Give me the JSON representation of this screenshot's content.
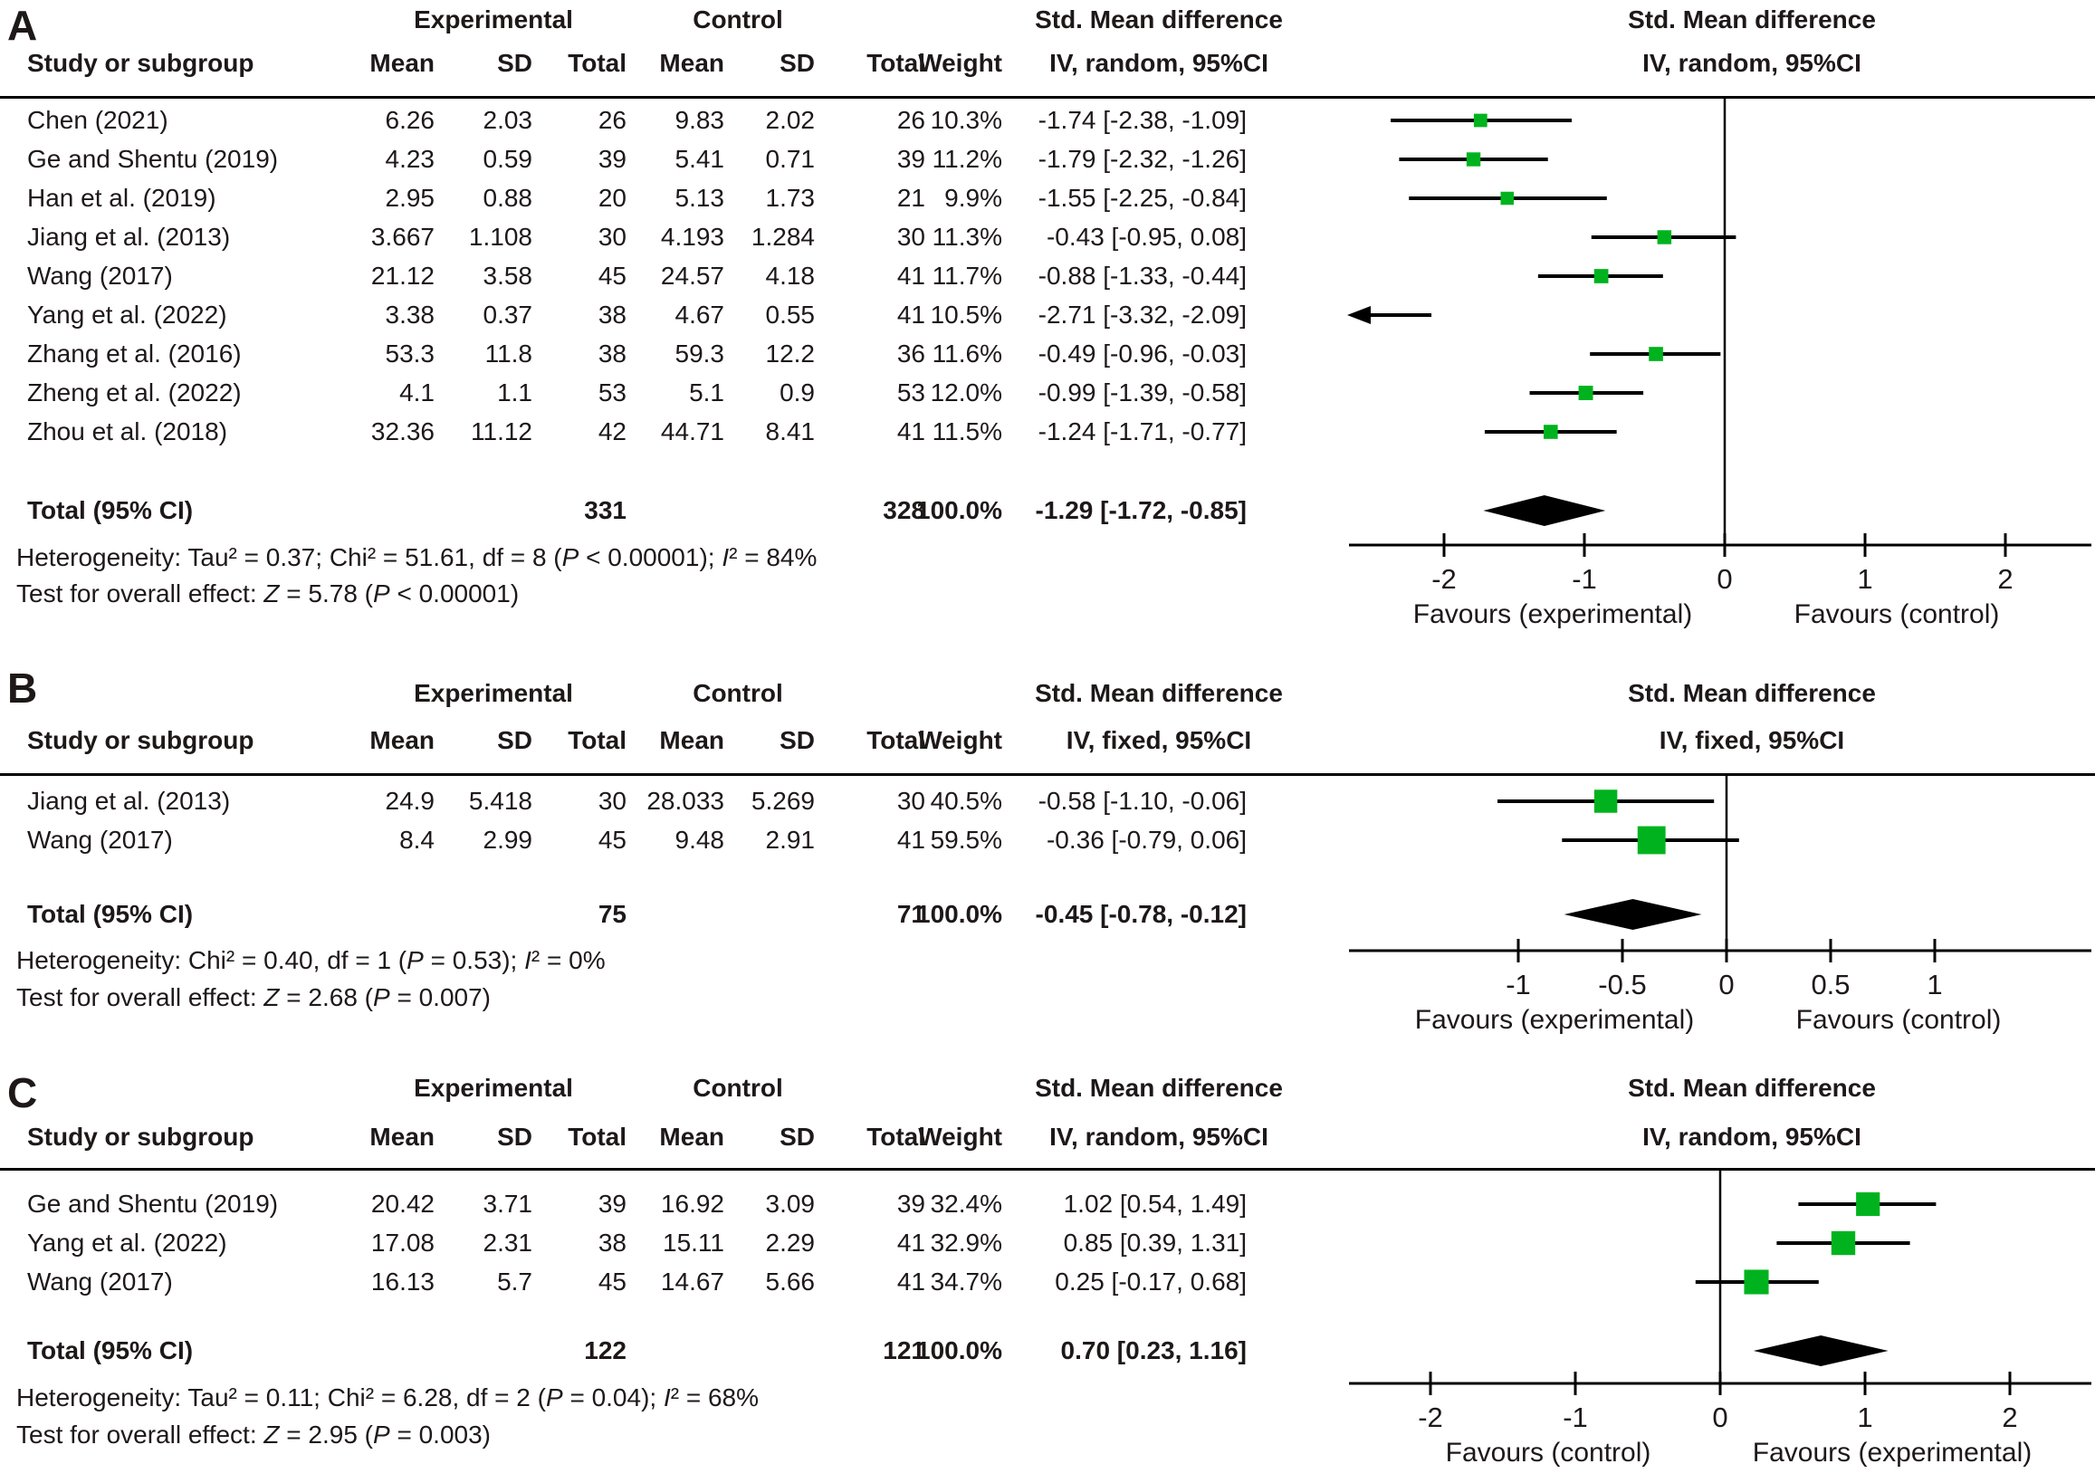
{
  "chart_data": {
    "type": "scatter",
    "subtype": "forest-plot-meta-analysis",
    "marker_color": "#00b31e",
    "line_color": "#000000",
    "panels": [
      {
        "label": "A",
        "headers": {
          "study": "Study or subgroup",
          "group1": "Experimental",
          "group2": "Control",
          "mean": "Mean",
          "sd": "SD",
          "total": "Total",
          "weight": "Weight",
          "effect_title": "Std. Mean difference",
          "effect_method": "IV, random, 95%CI",
          "plot_title": "Std. Mean difference",
          "plot_method": "IV, random, 95%CI"
        },
        "studies": [
          {
            "name": "Chen (2021)",
            "exp_mean": "6.26",
            "exp_sd": "2.03",
            "exp_total": "26",
            "ctrl_mean": "9.83",
            "ctrl_sd": "2.02",
            "ctrl_total": "26",
            "weight": "10.3%",
            "weight_pct": 10.3,
            "smd": "-1.74 [-2.38, -1.09]",
            "est": -1.74,
            "lo": -2.38,
            "hi": -1.09
          },
          {
            "name": "Ge and Shentu (2019)",
            "exp_mean": "4.23",
            "exp_sd": "0.59",
            "exp_total": "39",
            "ctrl_mean": "5.41",
            "ctrl_sd": "0.71",
            "ctrl_total": "39",
            "weight": "11.2%",
            "weight_pct": 11.2,
            "smd": "-1.79 [-2.32, -1.26]",
            "est": -1.79,
            "lo": -2.32,
            "hi": -1.26
          },
          {
            "name": "Han et al. (2019)",
            "exp_mean": "2.95",
            "exp_sd": "0.88",
            "exp_total": "20",
            "ctrl_mean": "5.13",
            "ctrl_sd": "1.73",
            "ctrl_total": "21",
            "weight": "9.9%",
            "weight_pct": 9.9,
            "smd": "-1.55 [-2.25, -0.84]",
            "est": -1.55,
            "lo": -2.25,
            "hi": -0.84
          },
          {
            "name": "Jiang et al. (2013)",
            "exp_mean": "3.667",
            "exp_sd": "1.108",
            "exp_total": "30",
            "ctrl_mean": "4.193",
            "ctrl_sd": "1.284",
            "ctrl_total": "30",
            "weight": "11.3%",
            "weight_pct": 11.3,
            "smd": "-0.43 [-0.95, 0.08]",
            "est": -0.43,
            "lo": -0.95,
            "hi": 0.08
          },
          {
            "name": "Wang (2017)",
            "exp_mean": "21.12",
            "exp_sd": "3.58",
            "exp_total": "45",
            "ctrl_mean": "24.57",
            "ctrl_sd": "4.18",
            "ctrl_total": "41",
            "weight": "11.7%",
            "weight_pct": 11.7,
            "smd": "-0.88 [-1.33, -0.44]",
            "est": -0.88,
            "lo": -1.33,
            "hi": -0.44
          },
          {
            "name": "Yang et al. (2022)",
            "exp_mean": "3.38",
            "exp_sd": "0.37",
            "exp_total": "38",
            "ctrl_mean": "4.67",
            "ctrl_sd": "0.55",
            "ctrl_total": "41",
            "weight": "10.5%",
            "weight_pct": 10.5,
            "smd": "-2.71 [-3.32, -2.09]",
            "est": -2.71,
            "lo": -3.32,
            "hi": -2.09
          },
          {
            "name": "Zhang et al. (2016)",
            "exp_mean": "53.3",
            "exp_sd": "11.8",
            "exp_total": "38",
            "ctrl_mean": "59.3",
            "ctrl_sd": "12.2",
            "ctrl_total": "36",
            "weight": "11.6%",
            "weight_pct": 11.6,
            "smd": "-0.49 [-0.96, -0.03]",
            "est": -0.49,
            "lo": -0.96,
            "hi": -0.03
          },
          {
            "name": "Zheng et al. (2022)",
            "exp_mean": "4.1",
            "exp_sd": "1.1",
            "exp_total": "53",
            "ctrl_mean": "5.1",
            "ctrl_sd": "0.9",
            "ctrl_total": "53",
            "weight": "12.0%",
            "weight_pct": 12.0,
            "smd": "-0.99 [-1.39, -0.58]",
            "est": -0.99,
            "lo": -1.39,
            "hi": -0.58
          },
          {
            "name": "Zhou et al. (2018)",
            "exp_mean": "32.36",
            "exp_sd": "11.12",
            "exp_total": "42",
            "ctrl_mean": "44.71",
            "ctrl_sd": "8.41",
            "ctrl_total": "41",
            "weight": "11.5%",
            "weight_pct": 11.5,
            "smd": "-1.24 [-1.71, -0.77]",
            "est": -1.24,
            "lo": -1.71,
            "hi": -0.77
          }
        ],
        "total": {
          "label": "Total (95% CI)",
          "exp_total": "331",
          "ctrl_total": "328",
          "weight": "100.0%",
          "smd": "-1.29 [-1.72, -0.85]",
          "est": -1.29,
          "lo": -1.72,
          "hi": -0.85
        },
        "heterogeneity": "Heterogeneity: Tau² = 0.37; Chi² = 51.61, df = 8 (*P* < 0.00001); *I*² = 84%",
        "overall_effect": "Test for overall effect: *Z* = 5.78 (*P* < 0.00001)",
        "axis": {
          "tick_labels": [
            "-2",
            "-1",
            "0",
            "1",
            "2"
          ],
          "tick_values": [
            -2,
            -1,
            0,
            1,
            2
          ],
          "left_label": "Favours (experimental)",
          "right_label": "Favours (control)"
        }
      },
      {
        "label": "B",
        "headers": {
          "study": "Study or subgroup",
          "group1": "Experimental",
          "group2": "Control",
          "mean": "Mean",
          "sd": "SD",
          "total": "Total",
          "weight": "Weight",
          "effect_title": "Std. Mean difference",
          "effect_method": "IV, fixed, 95%CI",
          "plot_title": "Std. Mean difference",
          "plot_method": "IV, fixed, 95%CI"
        },
        "studies": [
          {
            "name": "Jiang et al. (2013)",
            "exp_mean": "24.9",
            "exp_sd": "5.418",
            "exp_total": "30",
            "ctrl_mean": "28.033",
            "ctrl_sd": "5.269",
            "ctrl_total": "30",
            "weight": "40.5%",
            "weight_pct": 40.5,
            "smd": "-0.58 [-1.10, -0.06]",
            "est": -0.58,
            "lo": -1.1,
            "hi": -0.06
          },
          {
            "name": "Wang (2017)",
            "exp_mean": "8.4",
            "exp_sd": "2.99",
            "exp_total": "45",
            "ctrl_mean": "9.48",
            "ctrl_sd": "2.91",
            "ctrl_total": "41",
            "weight": "59.5%",
            "weight_pct": 59.5,
            "smd": "-0.36 [-0.79, 0.06]",
            "est": -0.36,
            "lo": -0.79,
            "hi": 0.06
          }
        ],
        "total": {
          "label": "Total (95% CI)",
          "exp_total": "75",
          "ctrl_total": "71",
          "weight": "100.0%",
          "smd": "-0.45 [-0.78, -0.12]",
          "est": -0.45,
          "lo": -0.78,
          "hi": -0.12
        },
        "heterogeneity": "Heterogeneity: Chi² = 0.40, df = 1 (*P* = 0.53); *I*² = 0%",
        "overall_effect": "Test for overall effect: *Z* = 2.68 (*P* = 0.007)",
        "axis": {
          "tick_labels": [
            "-1",
            "-0.5",
            "0",
            "0.5",
            "1"
          ],
          "tick_values": [
            -1,
            -0.5,
            0,
            0.5,
            1
          ],
          "left_label": "Favours (experimental)",
          "right_label": "Favours (control)"
        }
      },
      {
        "label": "C",
        "headers": {
          "study": "Study or subgroup",
          "group1": "Experimental",
          "group2": "Control",
          "mean": "Mean",
          "sd": "SD",
          "total": "Total",
          "weight": "Weight",
          "effect_title": "Std. Mean difference",
          "effect_method": "IV, random, 95%CI",
          "plot_title": "Std. Mean difference",
          "plot_method": "IV, random, 95%CI"
        },
        "studies": [
          {
            "name": "Ge and Shentu (2019)",
            "exp_mean": "20.42",
            "exp_sd": "3.71",
            "exp_total": "39",
            "ctrl_mean": "16.92",
            "ctrl_sd": "3.09",
            "ctrl_total": "39",
            "weight": "32.4%",
            "weight_pct": 32.4,
            "smd": "1.02 [0.54, 1.49]",
            "est": 1.02,
            "lo": 0.54,
            "hi": 1.49
          },
          {
            "name": "Yang et al. (2022)",
            "exp_mean": "17.08",
            "exp_sd": "2.31",
            "exp_total": "38",
            "ctrl_mean": "15.11",
            "ctrl_sd": "2.29",
            "ctrl_total": "41",
            "weight": "32.9%",
            "weight_pct": 32.9,
            "smd": "0.85 [0.39, 1.31]",
            "est": 0.85,
            "lo": 0.39,
            "hi": 1.31
          },
          {
            "name": "Wang (2017)",
            "exp_mean": "16.13",
            "exp_sd": "5.7",
            "exp_total": "45",
            "ctrl_mean": "14.67",
            "ctrl_sd": "5.66",
            "ctrl_total": "41",
            "weight": "34.7%",
            "weight_pct": 34.7,
            "smd": "0.25 [-0.17, 0.68]",
            "est": 0.25,
            "lo": -0.17,
            "hi": 0.68
          }
        ],
        "total": {
          "label": "Total (95% CI)",
          "exp_total": "122",
          "ctrl_total": "121",
          "weight": "100.0%",
          "smd": "0.70 [0.23, 1.16]",
          "est": 0.7,
          "lo": 0.23,
          "hi": 1.16
        },
        "heterogeneity": "Heterogeneity: Tau² = 0.11; Chi² = 6.28, df = 2 (*P* = 0.04); *I*² = 68%",
        "overall_effect": "Test for overall effect: *Z* = 2.95 (*P* = 0.003)",
        "axis": {
          "tick_labels": [
            "-2",
            "-1",
            "0",
            "1",
            "2"
          ],
          "tick_values": [
            -2,
            -1,
            0,
            1,
            2
          ],
          "left_label": "Favours (control)",
          "right_label": "Favours (experimental)"
        }
      }
    ]
  }
}
